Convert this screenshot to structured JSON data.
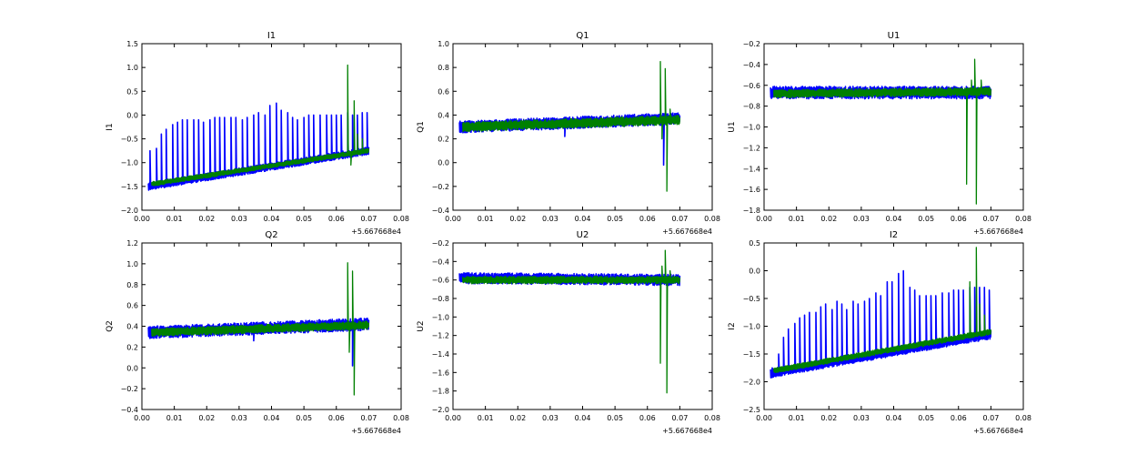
{
  "colors": {
    "series_1": "#0000ff",
    "series_2": "#008000",
    "axes": "#000000",
    "background": "#ffffff"
  },
  "chart_data": [
    {
      "type": "line",
      "title": "I1",
      "ylabel": "I1",
      "xlabel": "",
      "x_offset_label": "+5.667668e4",
      "xlim": [
        0.0,
        0.08
      ],
      "ylim": [
        -2.0,
        1.5
      ],
      "x_ticks": [
        "0.00",
        "0.01",
        "0.02",
        "0.03",
        "0.04",
        "0.05",
        "0.06",
        "0.07",
        "0.08"
      ],
      "y_ticks": [
        "−2.0",
        "−1.5",
        "−1.0",
        "−0.5",
        "0.0",
        "0.5",
        "1.0",
        "1.5"
      ],
      "grid": false,
      "series": [
        {
          "color": "#0000ff",
          "x_range": [
            0.002,
            0.07
          ],
          "baseline": [
            -1.5,
            -0.75
          ],
          "noise": 0.08,
          "spikes": [
            [
              0.0025,
              -0.75
            ],
            [
              0.0045,
              -0.7
            ],
            [
              0.006,
              -0.4
            ],
            [
              0.0075,
              -0.3
            ],
            [
              0.0095,
              -0.2
            ],
            [
              0.011,
              -0.15
            ],
            [
              0.0125,
              -0.1
            ],
            [
              0.014,
              -0.1
            ],
            [
              0.016,
              -0.1
            ],
            [
              0.0175,
              -0.1
            ],
            [
              0.019,
              -0.15
            ],
            [
              0.021,
              -0.1
            ],
            [
              0.0225,
              -0.05
            ],
            [
              0.024,
              -0.05
            ],
            [
              0.0255,
              -0.05
            ],
            [
              0.0275,
              -0.05
            ],
            [
              0.029,
              -0.05
            ],
            [
              0.031,
              -0.1
            ],
            [
              0.0325,
              -0.05
            ],
            [
              0.0345,
              0.0
            ],
            [
              0.036,
              0.05
            ],
            [
              0.038,
              0.0
            ],
            [
              0.0395,
              0.2
            ],
            [
              0.0415,
              0.25
            ],
            [
              0.043,
              0.1
            ],
            [
              0.045,
              0.05
            ],
            [
              0.0465,
              -0.05
            ],
            [
              0.048,
              -0.1
            ],
            [
              0.05,
              -0.05
            ],
            [
              0.0515,
              0.0
            ],
            [
              0.053,
              0.0
            ],
            [
              0.055,
              0.0
            ],
            [
              0.057,
              0.0
            ],
            [
              0.0585,
              0.0
            ],
            [
              0.06,
              0.0
            ],
            [
              0.0615,
              0.0
            ],
            [
              0.0635,
              0.05
            ],
            [
              0.065,
              0.0
            ],
            [
              0.0665,
              0.0
            ],
            [
              0.068,
              0.05
            ],
            [
              0.0695,
              0.05
            ]
          ]
        },
        {
          "color": "#008000",
          "x_range": [
            0.003,
            0.07
          ],
          "baseline": [
            -1.45,
            -0.75
          ],
          "noise": 0.05,
          "spikes": [
            [
              0.0635,
              1.05
            ],
            [
              0.0645,
              -1.05
            ],
            [
              0.0655,
              0.3
            ],
            [
              0.0665,
              -0.4
            ],
            [
              0.068,
              -0.5
            ]
          ]
        }
      ]
    },
    {
      "type": "line",
      "title": "Q1",
      "ylabel": "Q1",
      "xlabel": "",
      "x_offset_label": "+5.667668e4",
      "xlim": [
        0.0,
        0.08
      ],
      "ylim": [
        -0.4,
        1.0
      ],
      "x_ticks": [
        "0.00",
        "0.01",
        "0.02",
        "0.03",
        "0.04",
        "0.05",
        "0.06",
        "0.07",
        "0.08"
      ],
      "y_ticks": [
        "−0.4",
        "−0.2",
        "0.0",
        "0.2",
        "0.4",
        "0.6",
        "0.8",
        "1.0"
      ],
      "grid": false,
      "series": [
        {
          "color": "#0000ff",
          "x_range": [
            0.002,
            0.07
          ],
          "baseline": [
            0.3,
            0.37
          ],
          "noise": 0.05,
          "spikes": [
            [
              0.0345,
              0.22
            ],
            [
              0.065,
              -0.02
            ]
          ]
        },
        {
          "color": "#008000",
          "x_range": [
            0.003,
            0.07
          ],
          "baseline": [
            0.3,
            0.36
          ],
          "noise": 0.04,
          "spikes": [
            [
              0.064,
              0.85
            ],
            [
              0.0645,
              0.2
            ],
            [
              0.0655,
              0.79
            ],
            [
              0.066,
              -0.24
            ],
            [
              0.067,
              0.45
            ]
          ]
        }
      ]
    },
    {
      "type": "line",
      "title": "U1",
      "ylabel": "U1",
      "xlabel": "",
      "x_offset_label": "+5.667668e4",
      "xlim": [
        0.0,
        0.08
      ],
      "ylim": [
        -1.8,
        -0.2
      ],
      "x_ticks": [
        "0.00",
        "0.01",
        "0.02",
        "0.03",
        "0.04",
        "0.05",
        "0.06",
        "0.07",
        "0.08"
      ],
      "y_ticks": [
        "−1.8",
        "−1.6",
        "−1.4",
        "−1.2",
        "−1.0",
        "−0.8",
        "−0.6",
        "−0.4",
        "−0.2"
      ],
      "grid": false,
      "series": [
        {
          "color": "#0000ff",
          "x_range": [
            0.002,
            0.07
          ],
          "baseline": [
            -0.67,
            -0.67
          ],
          "noise": 0.06,
          "spikes": []
        },
        {
          "color": "#008000",
          "x_range": [
            0.003,
            0.07
          ],
          "baseline": [
            -0.68,
            -0.66
          ],
          "noise": 0.04,
          "spikes": [
            [
              0.0625,
              -1.55
            ],
            [
              0.064,
              -0.55
            ],
            [
              0.065,
              -0.35
            ],
            [
              0.0655,
              -1.74
            ],
            [
              0.067,
              -0.55
            ]
          ]
        }
      ]
    },
    {
      "type": "line",
      "title": "Q2",
      "ylabel": "Q2",
      "xlabel": "",
      "x_offset_label": "+5.667668e4",
      "xlim": [
        0.0,
        0.08
      ],
      "ylim": [
        -0.4,
        1.2
      ],
      "x_ticks": [
        "0.00",
        "0.01",
        "0.02",
        "0.03",
        "0.04",
        "0.05",
        "0.06",
        "0.07",
        "0.08"
      ],
      "y_ticks": [
        "−0.4",
        "−0.2",
        "0.0",
        "0.2",
        "0.4",
        "0.6",
        "0.8",
        "1.0",
        "1.2"
      ],
      "grid": false,
      "series": [
        {
          "color": "#0000ff",
          "x_range": [
            0.002,
            0.07
          ],
          "baseline": [
            0.34,
            0.42
          ],
          "noise": 0.06,
          "spikes": [
            [
              0.0345,
              0.26
            ],
            [
              0.065,
              0.02
            ]
          ]
        },
        {
          "color": "#008000",
          "x_range": [
            0.003,
            0.07
          ],
          "baseline": [
            0.34,
            0.41
          ],
          "noise": 0.04,
          "spikes": [
            [
              0.0635,
              1.01
            ],
            [
              0.064,
              0.15
            ],
            [
              0.065,
              0.93
            ],
            [
              0.0655,
              -0.26
            ],
            [
              0.067,
              0.45
            ]
          ]
        }
      ]
    },
    {
      "type": "line",
      "title": "U2",
      "ylabel": "U2",
      "xlabel": "",
      "x_offset_label": "+5.667668e4",
      "xlim": [
        0.0,
        0.08
      ],
      "ylim": [
        -2.0,
        -0.2
      ],
      "x_ticks": [
        "0.00",
        "0.01",
        "0.02",
        "0.03",
        "0.04",
        "0.05",
        "0.06",
        "0.07",
        "0.08"
      ],
      "y_ticks": [
        "−2.0",
        "−1.8",
        "−1.6",
        "−1.4",
        "−1.2",
        "−1.0",
        "−0.8",
        "−0.6",
        "−0.4",
        "−0.2"
      ],
      "grid": false,
      "series": [
        {
          "color": "#0000ff",
          "x_range": [
            0.002,
            0.07
          ],
          "baseline": [
            -0.58,
            -0.6
          ],
          "noise": 0.06,
          "spikes": []
        },
        {
          "color": "#008000",
          "x_range": [
            0.003,
            0.07
          ],
          "baseline": [
            -0.6,
            -0.6
          ],
          "noise": 0.04,
          "spikes": [
            [
              0.064,
              -1.5
            ],
            [
              0.0645,
              -0.45
            ],
            [
              0.0655,
              -0.28
            ],
            [
              0.066,
              -1.82
            ],
            [
              0.067,
              -0.5
            ]
          ]
        }
      ]
    },
    {
      "type": "line",
      "title": "I2",
      "ylabel": "I2",
      "xlabel": "",
      "x_offset_label": "+5.667668e4",
      "xlim": [
        0.0,
        0.08
      ],
      "ylim": [
        -2.5,
        0.5
      ],
      "x_ticks": [
        "0.00",
        "0.01",
        "0.02",
        "0.03",
        "0.04",
        "0.05",
        "0.06",
        "0.07",
        "0.08"
      ],
      "y_ticks": [
        "−2.5",
        "−2.0",
        "−1.5",
        "−1.0",
        "−0.5",
        "0.0",
        "0.5"
      ],
      "grid": false,
      "series": [
        {
          "color": "#0000ff",
          "x_range": [
            0.002,
            0.07
          ],
          "baseline": [
            -1.85,
            -1.15
          ],
          "noise": 0.08,
          "spikes": [
            [
              0.0025,
              -1.75
            ],
            [
              0.0045,
              -1.5
            ],
            [
              0.006,
              -1.2
            ],
            [
              0.0075,
              -1.05
            ],
            [
              0.0095,
              -0.95
            ],
            [
              0.011,
              -0.85
            ],
            [
              0.0125,
              -0.8
            ],
            [
              0.014,
              -0.75
            ],
            [
              0.016,
              -0.75
            ],
            [
              0.0175,
              -0.65
            ],
            [
              0.019,
              -0.6
            ],
            [
              0.021,
              -0.7
            ],
            [
              0.0225,
              -0.55
            ],
            [
              0.024,
              -0.6
            ],
            [
              0.0255,
              -0.7
            ],
            [
              0.0275,
              -0.55
            ],
            [
              0.029,
              -0.6
            ],
            [
              0.031,
              -0.55
            ],
            [
              0.0325,
              -0.5
            ],
            [
              0.0345,
              -0.4
            ],
            [
              0.036,
              -0.45
            ],
            [
              0.038,
              -0.2
            ],
            [
              0.0395,
              -0.2
            ],
            [
              0.0415,
              -0.05
            ],
            [
              0.043,
              0.0
            ],
            [
              0.045,
              -0.3
            ],
            [
              0.0465,
              -0.35
            ],
            [
              0.048,
              -0.45
            ],
            [
              0.05,
              -0.45
            ],
            [
              0.0515,
              -0.45
            ],
            [
              0.053,
              -0.45
            ],
            [
              0.055,
              -0.4
            ],
            [
              0.057,
              -0.4
            ],
            [
              0.0585,
              -0.35
            ],
            [
              0.06,
              -0.35
            ],
            [
              0.0615,
              -0.35
            ],
            [
              0.0635,
              -0.3
            ],
            [
              0.065,
              -0.3
            ],
            [
              0.0665,
              -0.3
            ],
            [
              0.068,
              -0.3
            ],
            [
              0.0695,
              -0.35
            ]
          ]
        },
        {
          "color": "#008000",
          "x_range": [
            0.003,
            0.07
          ],
          "baseline": [
            -1.8,
            -1.1
          ],
          "noise": 0.05,
          "spikes": [
            [
              0.0635,
              -0.2
            ],
            [
              0.0645,
              -1.2
            ],
            [
              0.0655,
              0.42
            ],
            [
              0.0665,
              -0.6
            ],
            [
              0.068,
              -0.8
            ]
          ]
        }
      ]
    }
  ]
}
